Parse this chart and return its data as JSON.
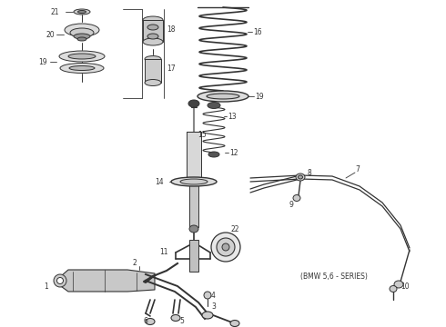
{
  "bg_color": "#ffffff",
  "line_color": "#333333",
  "fig_width": 4.9,
  "fig_height": 3.6,
  "dpi": 100,
  "bmw_note": "(BMW 5,6 - SERIES)"
}
